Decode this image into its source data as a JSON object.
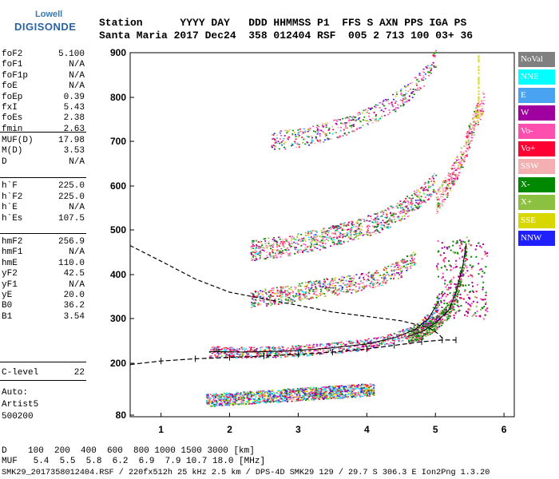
{
  "logo": {
    "top": "Lowell",
    "main": "DIGISONDE"
  },
  "header": {
    "line1": "Station      YYYY DAY   DDD HHMMSS P1  FFS S AXN PPS IGA PS",
    "line2": "Santa Maria 2017 Dec24  358 012404 RSF  005 2 713 100 03+ 36"
  },
  "params": {
    "group1": [
      {
        "label": "foF2",
        "value": "5.100"
      },
      {
        "label": "foF1",
        "value": "N/A"
      },
      {
        "label": "foF1p",
        "value": "N/A"
      },
      {
        "label": "foE",
        "value": "N/A"
      },
      {
        "label": "foEp",
        "value": "0.39"
      },
      {
        "label": "fxI",
        "value": "5.43"
      },
      {
        "label": "foEs",
        "value": "2.38"
      },
      {
        "label": "fmin",
        "value": "2.63"
      }
    ],
    "group2": [
      {
        "label": "MUF(D)",
        "value": "17.98"
      },
      {
        "label": "M(D)",
        "value": "3.53"
      },
      {
        "label": "D",
        "value": "N/A"
      }
    ],
    "group3": [
      {
        "label": "h`F",
        "value": "225.0"
      },
      {
        "label": "h`F2",
        "value": "225.0"
      },
      {
        "label": "h`E",
        "value": "N/A"
      },
      {
        "label": "h`Es",
        "value": "107.5"
      }
    ],
    "group4": [
      {
        "label": "hmF2",
        "value": "256.9"
      },
      {
        "label": "hmF1",
        "value": "N/A"
      },
      {
        "label": "hmE",
        "value": "110.0"
      },
      {
        "label": "yF2",
        "value": "42.5"
      },
      {
        "label": "yF1",
        "value": "N/A"
      },
      {
        "label": "yE",
        "value": "20.0"
      },
      {
        "label": "B0",
        "value": "36.2"
      },
      {
        "label": "B1",
        "value": "3.54"
      }
    ],
    "group5": [
      {
        "label": "C-level",
        "value": "22"
      }
    ]
  },
  "notes": {
    "auto": "Auto:",
    "artist": "Artist5",
    "code": "500200"
  },
  "legend": [
    {
      "label": "NoVal",
      "color": "#808080"
    },
    {
      "label": "NNE",
      "color": "#00ffff"
    },
    {
      "label": "E",
      "color": "#4aa3f0"
    },
    {
      "label": "W",
      "color": "#a000a0"
    },
    {
      "label": "Vo-",
      "color": "#ff4fae"
    },
    {
      "label": "Vo+",
      "color": "#ff0033"
    },
    {
      "label": "SSW",
      "color": "#f4b0b0"
    },
    {
      "label": "X-",
      "color": "#008800"
    },
    {
      "label": "X+",
      "color": "#8cc040"
    },
    {
      "label": "SSE",
      "color": "#d8d800"
    },
    {
      "label": "NNW",
      "color": "#2020ff"
    }
  ],
  "bottom": {
    "d_line": "D    100  200  400  600  800 1000 1500 3000 [km]",
    "muf_line": "MUF   5.4  5.5  5.8  6.2  6.9  7.9 10.7 18.0 [MHz]",
    "footer": "SMK29_2017358012404.RSF / 220fx512h 25 kHz 2.5 km / DPS-4D SMK29 129 / 29.7 S 306.3 E Ion2Png 1.3.20"
  },
  "chart_data": {
    "type": "scatter",
    "x_ticks": [
      1,
      2,
      3,
      4,
      5,
      6
    ],
    "y_ticks": [
      80,
      200,
      300,
      400,
      500,
      600,
      700,
      800,
      900
    ],
    "xlim": [
      0.55,
      6.15
    ],
    "ylim": [
      80,
      900
    ],
    "y_scale": "non-linear (ionogram virtual height)",
    "grid": false,
    "series": [
      {
        "name": "NoVal",
        "color": "#808080"
      },
      {
        "name": "NNE",
        "color": "#00ffff"
      },
      {
        "name": "E",
        "color": "#4aa3f0"
      },
      {
        "name": "W",
        "color": "#a000a0"
      },
      {
        "name": "Vo-",
        "color": "#ff4fae"
      },
      {
        "name": "Vo+",
        "color": "#ff0033"
      },
      {
        "name": "SSW",
        "color": "#f4b0b0"
      },
      {
        "name": "X-",
        "color": "#008800"
      },
      {
        "name": "X+",
        "color": "#8cc040"
      },
      {
        "name": "SSE",
        "color": "#d8d800"
      },
      {
        "name": "NNW",
        "color": "#2020ff"
      }
    ],
    "traces": {
      "es_layer": {
        "x": [
          1.65,
          4.1
        ],
        "y": [
          115,
          140
        ]
      },
      "o_trace_1": {
        "x": [
          1.7,
          2.2,
          2.8,
          3.4,
          4.0,
          4.4,
          4.7,
          4.9,
          5.05
        ],
        "y": [
          226,
          225,
          227,
          233,
          243,
          257,
          275,
          300,
          340
        ]
      },
      "x_trace_1": {
        "x": [
          4.6,
          4.8,
          5.0,
          5.2,
          5.3,
          5.4,
          5.45
        ],
        "y": [
          260,
          270,
          290,
          320,
          360,
          420,
          470
        ]
      },
      "o_trace_2": {
        "x": [
          2.3,
          2.8,
          3.3,
          3.8,
          4.2,
          4.5,
          4.7
        ],
        "y": [
          345,
          355,
          370,
          380,
          395,
          415,
          440
        ]
      },
      "o_trace_3": {
        "x": [
          2.3,
          2.8,
          3.3,
          3.8,
          4.2,
          4.5,
          4.8,
          5.0
        ],
        "y": [
          455,
          465,
          480,
          500,
          520,
          545,
          580,
          610
        ]
      },
      "o_trace_4": {
        "x": [
          2.6,
          3.2,
          3.8,
          4.2,
          4.5,
          4.8,
          5.0
        ],
        "y": [
          700,
          715,
          740,
          770,
          800,
          840,
          890
        ]
      },
      "high_branch": {
        "x": [
          5.0,
          5.2,
          5.4,
          5.5,
          5.7
        ],
        "y": [
          560,
          610,
          670,
          720,
          800
        ]
      },
      "profile_dashed": {
        "x": [
          0.55,
          1.0,
          1.5,
          2.0,
          2.5,
          3.0,
          3.5,
          4.0,
          4.5,
          4.9,
          5.05,
          5.1
        ],
        "y": [
          465,
          430,
          390,
          360,
          345,
          330,
          315,
          305,
          295,
          280,
          265,
          256
        ]
      },
      "model_trace": {
        "x": [
          0.55,
          1.0,
          1.5,
          2.0,
          2.5,
          3.0,
          3.5,
          4.0,
          4.4,
          4.8,
          5.1,
          5.3
        ],
        "y": [
          197,
          205,
          210,
          213,
          216,
          220,
          225,
          232,
          240,
          248,
          252,
          252
        ]
      }
    }
  }
}
